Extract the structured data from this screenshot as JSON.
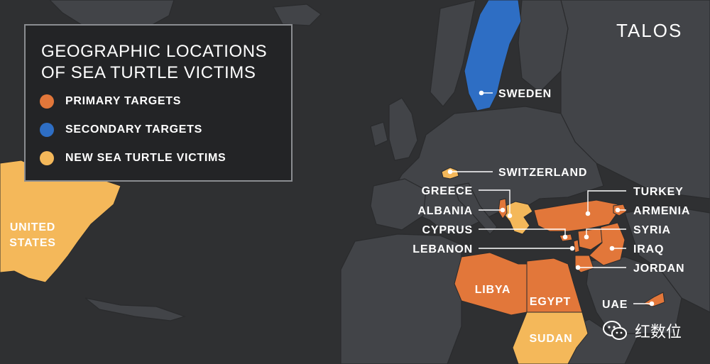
{
  "brand": "TALOS",
  "legend": {
    "title_line1": "GEOGRAPHIC LOCATIONS",
    "title_line2": "OF SEA TURTLE VICTIMS",
    "items": [
      {
        "label": "PRIMARY TARGETS",
        "color": "#e2773a"
      },
      {
        "label": "SECONDARY TARGETS",
        "color": "#2e6ec4"
      },
      {
        "label": "NEW SEA TURTLE VICTIMS",
        "color": "#f4b85a"
      }
    ]
  },
  "colors": {
    "background": "#2f3032",
    "land": "#424448",
    "border": "#2a2b2d",
    "primary": "#e2773a",
    "secondary": "#2e6ec4",
    "new": "#f4b85a",
    "label": "#ffffff"
  },
  "countries": {
    "sweden": "SWEDEN",
    "switzerland": "SWITZERLAND",
    "greece": "GREECE",
    "albania": "ALBANIA",
    "cyprus": "CYPRUS",
    "lebanon": "LEBANON",
    "turkey": "TURKEY",
    "armenia": "ARMENIA",
    "syria": "SYRIA",
    "iraq": "IRAQ",
    "jordan": "JORDAN",
    "uae": "UAE",
    "libya": "LIBYA",
    "egypt": "EGYPT",
    "sudan": "SUDAN",
    "usa_line1": "UNITED",
    "usa_line2": "STATES"
  },
  "watermark": {
    "text": "红数位",
    "icon": "wechat-icon"
  }
}
